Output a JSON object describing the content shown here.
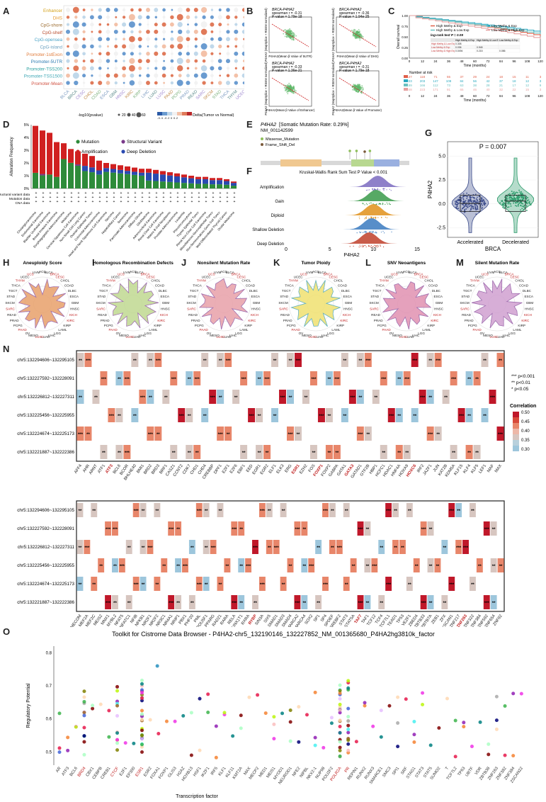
{
  "panels": {
    "A": "A",
    "B": "B",
    "C": "C",
    "D": "D",
    "E": "E",
    "F": "F",
    "G": "G",
    "H": "H",
    "I": "I",
    "J": "J",
    "K": "K",
    "L": "L",
    "M": "M",
    "N": "N",
    "O": "O"
  },
  "panelA": {
    "rows": [
      "Enhancer",
      "DHS",
      "CpG-shore",
      "CpG-shelf",
      "CpG-opensea",
      "CpG-island",
      "Promoter-1stExon",
      "Promoter-5UTR",
      "Promoter-TSS200",
      "Promoter-TSS1500",
      "Promoter-Mean"
    ],
    "row_colors": [
      "#d4a017",
      "#e69a2e",
      "#9b6b2f",
      "#b84a2a",
      "#4aa3c7",
      "#6aa0c0",
      "#e07b3a",
      "#2a7ab0",
      "#2aa0a0",
      "#3fa7b5",
      "#d05040"
    ],
    "cols": [
      "BLCA",
      "BRCA",
      "CESC",
      "CHOL",
      "COAD",
      "ESCA",
      "GBM",
      "HNSC",
      "KIRC",
      "KIRP",
      "LIHC",
      "LUAD",
      "LUSC",
      "PAAD",
      "PCPG",
      "PRAD",
      "READ",
      "SARC",
      "SKCM",
      "STAD",
      "THCA",
      "THYM",
      "UCEC"
    ],
    "legend_size_label": "-log10(pvalue)",
    "legend_sizes": [
      "20",
      "40",
      "60"
    ],
    "legend_color_label": "Delta(Tumor vs Normal)",
    "legend_color_ticks": "-0.4 -0.2 0 0.2"
  },
  "panelB": {
    "plots": [
      {
        "title": "BRCA-P4HA2",
        "stat1": "spearman r = -0.31",
        "stat2": "P-value = 1.79e-18",
        "ylabel": "P4HA2 (MapSplice + RSEM normalized)",
        "xlabel": "P4HA2(Mean β Value of 5UTR)"
      },
      {
        "title": "BRCA-P4HA2",
        "stat1": "spearman r = -0.36",
        "stat2": "P-value = 1.94e-25",
        "ylabel": "P4HA2 (MapSplice + RSEM normalized)",
        "xlabel": "P4HA2(Mean β Value of DHS)"
      },
      {
        "title": "BRCA-P4HA2",
        "stat1": "spearman r = -0.33",
        "stat2": "P-value = 1.36e-21",
        "ylabel": "P4HA2 (MapSplice + RSEM normalized)",
        "xlabel": "P4HA2(Mean β Value of Enhancer)"
      },
      {
        "title": "BRCA-P4HA2",
        "stat1": "spearman r = -0.31",
        "stat2": "P-value = 1.79e-18",
        "ylabel": "P4HA2 (MapSplice + RSEM normalized)",
        "xlabel": "P4HA2(Mean β Value of Promoter)"
      }
    ]
  },
  "panelC": {
    "ylabel": "Overall survival",
    "xlabel": "Time (months)",
    "yticks": [
      "1.00",
      "0.75",
      "0.50",
      "0.25",
      "0.00"
    ],
    "xticks": [
      "0",
      "12",
      "24",
      "36",
      "48",
      "60",
      "72",
      "84",
      "96",
      "108",
      "120"
    ],
    "legend": [
      "High Methy & Exp",
      "Low Methy & Exp",
      "High Methy & Low Exp",
      "Low Methy & High Exp"
    ],
    "legend_colors": [
      "#e0604a",
      "#2aa9c0",
      "#6ac0c0",
      "#e6a0a0"
    ],
    "pval": "log-rank test P = 0.09",
    "table_head": [
      "",
      "High Methy & Exp",
      "High Methy & Low Exp",
      "Low Methy & Exp"
    ],
    "table_rows": [
      [
        "High Methy & Low Exp",
        "0.308",
        "",
        ""
      ],
      [
        "Low Methy & Exp",
        "0.036",
        "0.945",
        ""
      ],
      [
        "Low Methy & High Exp",
        "0.0494",
        "0.215",
        "0.086"
      ]
    ],
    "risk_title": "Number at risk",
    "risk": [
      [
        "127",
        "118",
        "71",
        "55",
        "37",
        "29",
        "24",
        "18",
        "15",
        "11",
        "3"
      ],
      [
        "223",
        "203",
        "147",
        "108",
        "84",
        "56",
        "42",
        "37",
        "18",
        "12",
        "3"
      ],
      [
        "189",
        "166",
        "112",
        "73",
        "63",
        "38",
        "28",
        "21",
        "17",
        "12",
        "9"
      ],
      [
        "248",
        "223",
        "171",
        "91",
        "65",
        "46",
        "40",
        "32",
        "22",
        "15",
        "3"
      ]
    ],
    "risk_xlabel": "Time (months)"
  },
  "panelD": {
    "ylabel": "Alteration Frequency",
    "yticks": [
      "5%",
      "4%",
      "3%",
      "2%",
      "1%",
      "0%"
    ],
    "legend": [
      "Mutation",
      "Structural Variant",
      "Amplification",
      "Deep Deletion"
    ],
    "legend_colors": [
      "#2e8b3a",
      "#7a3a8a",
      "#d02020",
      "#2a4ab0"
    ],
    "rowlabels": [
      "Structural variant data",
      "Mutation data",
      "CNA data"
    ],
    "cancers": [
      "Cholangiocarcinoma",
      "Endometrial Carcinoma",
      "Bladder Urothelial Carcinoma",
      "Breast Invasive Carcinoma",
      "Esophagogastric Adenocarcinoma",
      "Melanoma",
      "Cervical Squamous Cell Carcinoma",
      "Non-Small Cell Lung Cancer",
      "Ovarian Epithelial Tumor",
      "Colorectal Adenocarcinoma",
      "Head and Neck Squamous Cell Carcinoma",
      "Sarcoma",
      "Hepatobiliary Cancer",
      "Seminoma",
      "Pancreatic Adenocarcinoma",
      "Diffuse Glioma",
      "Glioblastoma",
      "Adrenocortical Carcinoma",
      "Renal Clear Cell Carcinoma",
      "Mature B-Cell Neoplasms",
      "Prostate Adenocarcinoma",
      "Leukemia",
      "Pheochromocytoma",
      "Thymic Epithelial Tumor",
      "Renal Non-Clear Cell Carcinoma",
      "Miscellaneous Neuroepithelial Tumor",
      "Non-Seminomatous Germ Cell Tumor",
      "Well-Differentiated Thyroid Cancer",
      "Ocular Melanoma"
    ]
  },
  "panelE": {
    "gene": "P4HA2",
    "title_rest": "[Somatic Mutation Rate: 0.29%]",
    "transcript": "NM_001142599",
    "legend": [
      "Missense_Mutation",
      "Frame_Shift_Del"
    ],
    "legend_colors": [
      "#8fbf5a",
      "#7a5a3a"
    ],
    "xticks": [
      "0",
      "100",
      "200",
      "300",
      "400",
      "500",
      "535"
    ]
  },
  "panelF": {
    "title": "Kruskal-Wallis Rank Sum Test P Value < 0.001",
    "xlabel": "P4HA2",
    "categories": [
      "Amplification",
      "Gain",
      "Diploid",
      "Shallow Deletion",
      "Deep Deletion"
    ],
    "cat_colors": [
      "#7a6ac0",
      "#3a9a4a",
      "#e0901a",
      "#3a7ac0",
      "#c0402a"
    ],
    "xticks": [
      "0",
      "5",
      "10",
      "15"
    ]
  },
  "panelG": {
    "ylabel": "P4HA2",
    "xlabel": "BRCA",
    "pval": "P = 0.007",
    "groups": [
      "Accelerated",
      "Decelerated"
    ],
    "group_colors": [
      "#3a4a8a",
      "#2a9a6a"
    ],
    "yticks": [
      "5.0",
      "2.5",
      "0.0",
      "-2.5"
    ]
  },
  "radars": [
    {
      "title": "Aneuploidy Score",
      "fill": "#e8a06a",
      "stroke": "#a070b0"
    },
    {
      "title": "Homologous Recombination Defects",
      "fill": "#c0d890",
      "stroke": "#a070b0"
    },
    {
      "title": "Nonsilent Mutation Rate",
      "fill": "#e8a0a8",
      "stroke": "#a070b0"
    },
    {
      "title": "Tumor Ploidy",
      "fill": "#f0e070",
      "stroke": "#60b0c0"
    },
    {
      "title": "SNV Neoantigens",
      "fill": "#e090b0",
      "stroke": "#a070b0"
    },
    {
      "title": "Silent Mutation Rate",
      "fill": "#d0a0d0",
      "stroke": "#a070b0"
    }
  ],
  "radar_labels": [
    "ACC",
    "BLCA",
    "BRCA",
    "CESC",
    "CHOL",
    "COAD",
    "DLBC",
    "ESCA",
    "GBM",
    "HNSC",
    "KICH",
    "KIRC",
    "KIRP",
    "LAML",
    "LGG",
    "LIHC",
    "LUAD",
    "LUSC",
    "MESO",
    "OV",
    "PAAD",
    "PCPG",
    "PRAD",
    "READ",
    "SARC",
    "SKCM",
    "STAD",
    "TGCT",
    "THCA",
    "THYM",
    "UCEC",
    "UCS",
    "UVM"
  ],
  "panelN": {
    "rows": [
      "chr5:132294606~132295105",
      "chr5:132227592~132228091",
      "chr5:132226812~132227311",
      "chr5:132225456~132225955",
      "chr5:132224674~132225173",
      "chr5:132221887~132222386"
    ],
    "genes1": [
      "AFF4",
      "AHR",
      "ARNT",
      "ATF1",
      "ATF3",
      "BCL6",
      "BCOR",
      "BHLHE40",
      "BMI1",
      "BRD2",
      "BRD3",
      "BRF1",
      "CASZ1",
      "CCNT2",
      "CDK7",
      "CHD1",
      "CHD4",
      "CREBBP",
      "DPF1",
      "E2F1",
      "E2F6",
      "EBF1",
      "EED",
      "EGR1",
      "EGR2",
      "ELF1",
      "ELK3",
      "ERG",
      "ESR1",
      "EZH2",
      "FOS",
      "FOXP1",
      "FOXP2",
      "GABPA",
      "GATA1",
      "GATA3",
      "GATAD1",
      "GTF2B",
      "HBP1",
      "HCFC1",
      "HDAC1",
      "HNF4A",
      "HOXA9",
      "HOXC6",
      "IRF2",
      "JAZF1",
      "JUN",
      "KAT2B",
      "KDM5A",
      "KLF15",
      "KLF4",
      "KLF5",
      "LEF1",
      "MAF",
      "MAX"
    ],
    "red_genes1": [
      "ATF3",
      "ESR1",
      "FOXP1",
      "GATA3",
      "HOXC6"
    ],
    "genes2": [
      "MECOM",
      "MEF2A",
      "MEF2C",
      "MEIS2",
      "MNX1",
      "MYBL2",
      "NFAT5",
      "NFATC1",
      "NFIB",
      "NFKB1",
      "NR2F1",
      "NR2F2",
      "NR3C1",
      "NR4A1",
      "NRIP1",
      "PBX1",
      "PHF20",
      "PML",
      "POU5F1",
      "PPARG",
      "RAD21",
      "RARA",
      "RELA",
      "RUNX1T1",
      "RXRA",
      "RYBP",
      "SIN3A",
      "SIX5",
      "SMAD1",
      "SMAD3",
      "SMAD4",
      "SMARCA2",
      "SMARCA4",
      "SOX2",
      "SP1",
      "SP4",
      "SPDEF",
      "SREBF2",
      "STAT3",
      "STAT5A",
      "TAF7",
      "TAF1",
      "TCF12",
      "TCF4",
      "TCF7L1",
      "TEAD1",
      "TP53",
      "VEZF1",
      "ZBED4",
      "ZBTB33",
      "ZBTB7A",
      "ZEB1",
      "ZFX",
      "ZKSCAN1",
      "ZNF217",
      "ZNF263",
      "ZNF322",
      "ZNF384",
      "ZNF592",
      "ZNF654",
      "ZNF92"
    ],
    "red_genes2": [
      "RYBP",
      "TAF7",
      "ZNF263"
    ],
    "sig_legend": [
      "***  p<0.001",
      "**  p<0.01",
      "*  p<0.05"
    ],
    "corr_title": "Correlation",
    "corr_ticks": [
      "0.50",
      "0.45",
      "0.40",
      "0.35",
      "0.30"
    ]
  },
  "panelO": {
    "title": "Toolkit for Cistrome Data Browser - P4HA2-chr5_132190146_132227852_NM_001365680_P4HA2hg3810k_factor",
    "ylabel": "Regulatory Potential",
    "xlabel": "Transcription factor",
    "yticks": [
      "0.8",
      "0.7",
      "0.6",
      "0.5"
    ],
    "factors": [
      "AR",
      "ATF3",
      "BCL6",
      "BRD4",
      "CBX1",
      "CEBPB",
      "CREB1",
      "CTCF",
      "E2F1",
      "EP300",
      "ESR1",
      "ESR2",
      "FOXA1",
      "FOXP1",
      "GLIS3",
      "H2AZ",
      "HOXB13",
      "HSF1",
      "IKZF1",
      "IRF5",
      "KLF1",
      "KLF11",
      "KMT2A",
      "MAX",
      "MECP2",
      "MED1",
      "MEIS1",
      "MYOD1",
      "NEUROD1",
      "NFE2",
      "NIPBL",
      "NKX2-1",
      "NUP98",
      "POU2F2",
      "POLR2A",
      "PR",
      "REPIN1",
      "RUNX2",
      "RUNX3",
      "SMARCE1",
      "SMC3",
      "SPI1",
      "SRF",
      "STAG1",
      "STAT3",
      "STAT5",
      "SUMO2",
      "T",
      "TCF7L2",
      "TP63",
      "UBTF",
      "VDR",
      "ZBTB38",
      "ZNF263",
      "ZNF382",
      "ZNF384",
      "ZSCAN22"
    ],
    "red_factors": [
      "BRD4",
      "CTCF",
      "ESR1",
      "POLR2A",
      "PR"
    ]
  }
}
